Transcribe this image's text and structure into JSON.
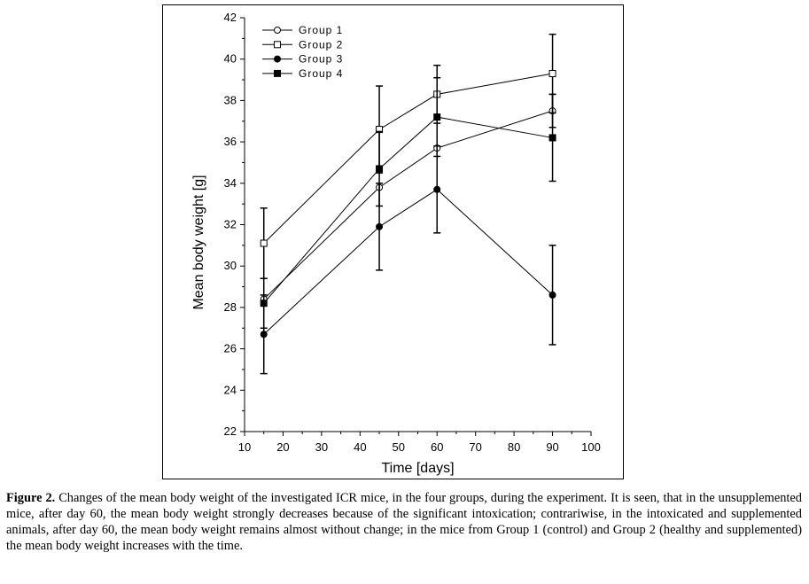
{
  "chart_data": {
    "type": "line",
    "xlabel": "Time [days]",
    "ylabel": "Mean body weight [g]",
    "xlim": [
      10,
      100
    ],
    "ylim": [
      22,
      42
    ],
    "xticks": [
      10,
      20,
      30,
      40,
      50,
      60,
      70,
      80,
      90,
      100
    ],
    "yticks": [
      22,
      24,
      26,
      28,
      30,
      32,
      34,
      36,
      38,
      40,
      42
    ],
    "legend_position": "top-left",
    "x": [
      15,
      45,
      60,
      90
    ],
    "series": [
      {
        "name": "Group 1",
        "marker": "open-circle",
        "values": [
          28.4,
          33.8,
          35.7,
          37.5
        ],
        "errors": [
          0.0,
          0.0,
          0.0,
          0.8
        ]
      },
      {
        "name": "Group 2",
        "marker": "open-square",
        "values": [
          31.1,
          36.6,
          38.3,
          39.3
        ],
        "errors": [
          1.7,
          2.1,
          1.4,
          1.9
        ]
      },
      {
        "name": "Group 3",
        "marker": "filled-circle",
        "values": [
          26.7,
          31.9,
          33.7,
          28.6
        ],
        "errors": [
          1.9,
          2.1,
          2.1,
          2.4
        ]
      },
      {
        "name": "Group 4",
        "marker": "filled-square",
        "values": [
          28.2,
          34.7,
          37.2,
          36.2
        ],
        "errors": [
          1.2,
          1.8,
          1.9,
          2.1
        ]
      }
    ]
  },
  "caption": {
    "label": "Figure 2.",
    "text": "Changes of the mean body weight of the investigated ICR mice, in the four groups, during the experiment. It is seen, that in the unsupplemented mice, after day 60, the mean body weight strongly decreases because of the significant intoxication; contrariwise, in the intoxicated and supplemented animals, after day 60, the mean body weight remains almost without change; in the mice from Group 1 (control) and Group 2 (healthy and supplemented) the mean body weight increases with the time."
  }
}
